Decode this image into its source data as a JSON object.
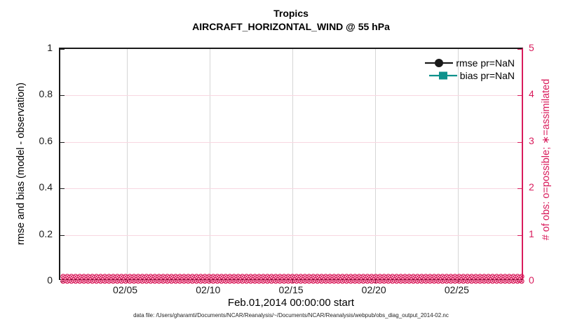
{
  "title": {
    "line1": "Tropics",
    "line2": "AIRCRAFT_HORIZONTAL_WIND @ 55 hPa"
  },
  "axes": {
    "left": {
      "label": "rmse and bias (model - observation)",
      "tick_labels": [
        "0",
        "0.2",
        "0.4",
        "0.6",
        "0.8",
        "1"
      ],
      "tick_values": [
        0,
        0.2,
        0.4,
        0.6,
        0.8,
        1
      ],
      "range": [
        0,
        1
      ],
      "color": "#1a1a1a"
    },
    "right": {
      "label": "# of obs: o=possible; ∗=assimilated",
      "tick_labels": [
        "0",
        "1",
        "2",
        "3",
        "4",
        "5"
      ],
      "tick_values": [
        0,
        1,
        2,
        3,
        4,
        5
      ],
      "range": [
        0,
        5
      ],
      "color": "#d91c5c"
    },
    "bottom": {
      "label": "Feb.01,2014 00:00:00 start",
      "tick_labels": [
        "02/05",
        "02/10",
        "02/15",
        "02/20",
        "02/25"
      ],
      "tick_days": [
        5,
        10,
        15,
        20,
        25
      ],
      "range_days": [
        1,
        29
      ]
    }
  },
  "legend": {
    "items": [
      {
        "label": "rmse pr=NaN",
        "color": "#1a1a1a",
        "marker": "circle"
      },
      {
        "label": "bias pr=NaN",
        "color": "#0e918c",
        "marker": "square"
      }
    ]
  },
  "footer": "data file: /Users/gharamti/Documents/NCAR/Reanalysis/~/Documents/NCAR/Reanalysis/webpub/obs_diag_output_2014-02.nc",
  "colors": {
    "obs_pink": "#d91c5c",
    "grid_gray": "#d6d6d6",
    "grid_pink": "#f8d7e1",
    "rmse_black": "#1a1a1a",
    "bias_teal": "#0e918c"
  },
  "chart_data": {
    "type": "line",
    "title": "Tropics",
    "subtitle": "AIRCRAFT_HORIZONTAL_WIND @ 55 hPa",
    "x_axis": {
      "label": "Feb.01,2014 00:00:00 start",
      "tick_labels": [
        "02/05",
        "02/10",
        "02/15",
        "02/20",
        "02/25"
      ],
      "range": [
        "2014-02-01 00:00",
        "2014-03-01 00:00"
      ]
    },
    "y_left": {
      "label": "rmse and bias (model - observation)",
      "lim": [
        0,
        1
      ],
      "ticks": [
        0,
        0.2,
        0.4,
        0.6,
        0.8,
        1
      ]
    },
    "y_right": {
      "label": "# of obs: o=possible; ∗=assimilated",
      "lim": [
        0,
        5
      ],
      "ticks": [
        0,
        1,
        2,
        3,
        4,
        5
      ]
    },
    "grid": true,
    "legend_position": "top-right inside",
    "series": [
      {
        "name": "rmse pr=NaN",
        "axis": "left",
        "marker": "circle",
        "color": "#1a1a1a",
        "values": "all NaN - no curve plotted"
      },
      {
        "name": "bias pr=NaN",
        "axis": "left",
        "marker": "square",
        "color": "#0e918c",
        "values": "all NaN - no curve plotted"
      },
      {
        "name": "# of obs possible (o markers)",
        "axis": "right",
        "marker": "circle-outline",
        "color": "#d91c5c",
        "constant_value": 0,
        "n_points": 111,
        "note": "dense row of o markers along y=0 spanning full x range"
      },
      {
        "name": "# of obs assimilated (x markers)",
        "axis": "right",
        "marker": "x",
        "color": "#d91c5c",
        "constant_value": 0,
        "n_points": 111,
        "note": "dense row of x markers along y=0 spanning full x range"
      }
    ]
  }
}
